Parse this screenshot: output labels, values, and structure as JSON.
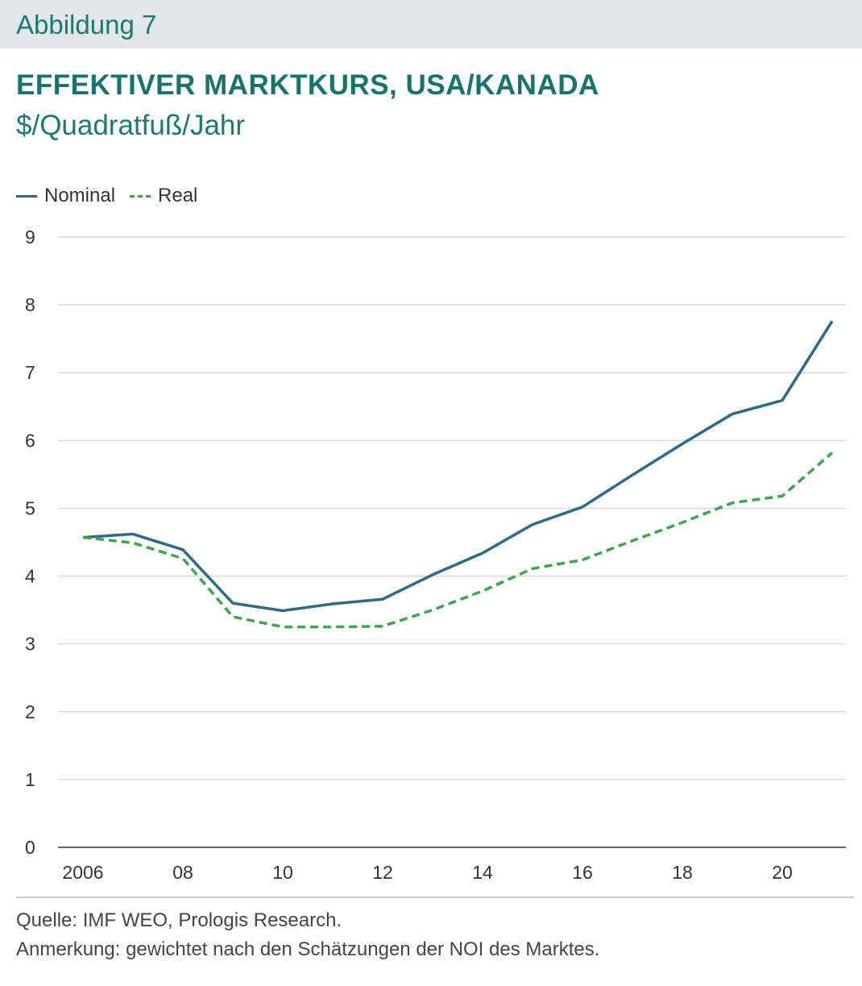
{
  "figure_label": "Abbildung 7",
  "chart_data": {
    "type": "line",
    "title": "EFFEKTIVER MARKTKURS, USA/KANADA",
    "subtitle": "$/Quadratfuß/Jahr",
    "xlabel": "",
    "ylabel": "",
    "x": [
      2006,
      2007,
      2008,
      2009,
      2010,
      2011,
      2012,
      2013,
      2014,
      2015,
      2016,
      2017,
      2018,
      2019,
      2020,
      2021
    ],
    "x_ticks": [
      {
        "value": 2006,
        "label": "2006"
      },
      {
        "value": 2008,
        "label": "08"
      },
      {
        "value": 2010,
        "label": "10"
      },
      {
        "value": 2012,
        "label": "12"
      },
      {
        "value": 2014,
        "label": "14"
      },
      {
        "value": 2016,
        "label": "16"
      },
      {
        "value": 2018,
        "label": "18"
      },
      {
        "value": 2020,
        "label": "20"
      }
    ],
    "y_ticks": [
      "0",
      "1",
      "2",
      "3",
      "4",
      "5",
      "6",
      "7",
      "8",
      "9"
    ],
    "ylim": [
      0,
      9
    ],
    "grid": true,
    "legend_position": "top-left",
    "series": [
      {
        "name": "Nominal",
        "color": "#2e6b87",
        "style": "solid",
        "values": [
          4.57,
          4.62,
          4.39,
          3.6,
          3.49,
          3.59,
          3.66,
          4.02,
          4.34,
          4.76,
          5.02,
          5.49,
          5.95,
          6.39,
          6.59,
          7.76
        ]
      },
      {
        "name": "Real",
        "color": "#3fa54a",
        "style": "dashed",
        "values": [
          4.57,
          4.49,
          4.26,
          3.4,
          3.25,
          3.25,
          3.26,
          3.5,
          3.78,
          4.11,
          4.24,
          4.52,
          4.79,
          5.08,
          5.18,
          5.82
        ]
      }
    ]
  },
  "footer": {
    "source": "Quelle: IMF WEO, Prologis Research.",
    "note": "Anmerkung: gewichtet nach den Schätzungen der NOI des Marktes."
  },
  "colors": {
    "accent": "#1a7a73",
    "header_bg": "#e3e6e9",
    "grid": "#d9d9d9",
    "axis": "#666666"
  }
}
